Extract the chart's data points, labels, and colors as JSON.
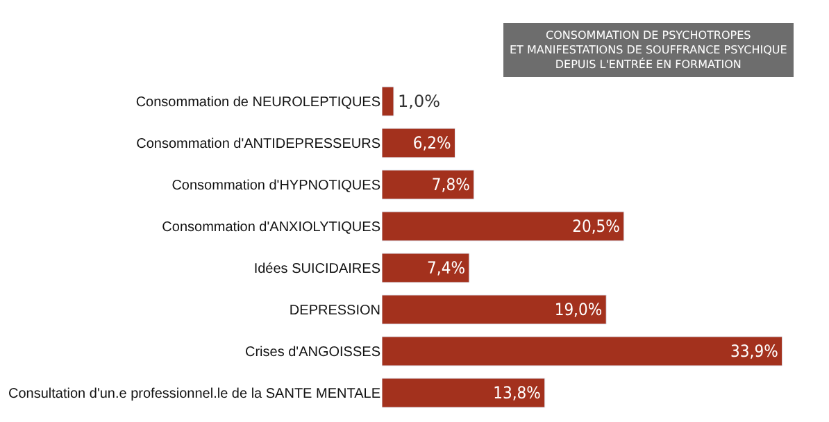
{
  "chart_data": {
    "type": "bar",
    "orientation": "horizontal",
    "title": "CONSOMMATION DE PSYCHOTROPES\nET MANIFESTATIONS DE SOUFFRANCE PSYCHIQUE\nDEPUIS L'ENTRÉE EN FORMATION",
    "categories": [
      "Consommation de NEUROLEPTIQUES",
      "Consommation d'ANTIDEPRESSEURS",
      "Consommation d'HYPNOTIQUES",
      "Consommation d'ANXIOLYTIQUES",
      "Idées SUICIDAIRES",
      "DEPRESSION",
      "Crises d'ANGOISSES",
      "Consultation d'un.e professionnel.le de la SANTE MENTALE"
    ],
    "values": [
      1.0,
      6.2,
      7.8,
      20.5,
      7.4,
      19.0,
      33.9,
      13.8
    ],
    "value_labels": [
      "1,0%",
      "6,2%",
      "7,8%",
      "20,5%",
      "7,4%",
      "19,0%",
      "33,9%",
      "13,8%"
    ],
    "color": "#a3311d",
    "legend": false
  }
}
